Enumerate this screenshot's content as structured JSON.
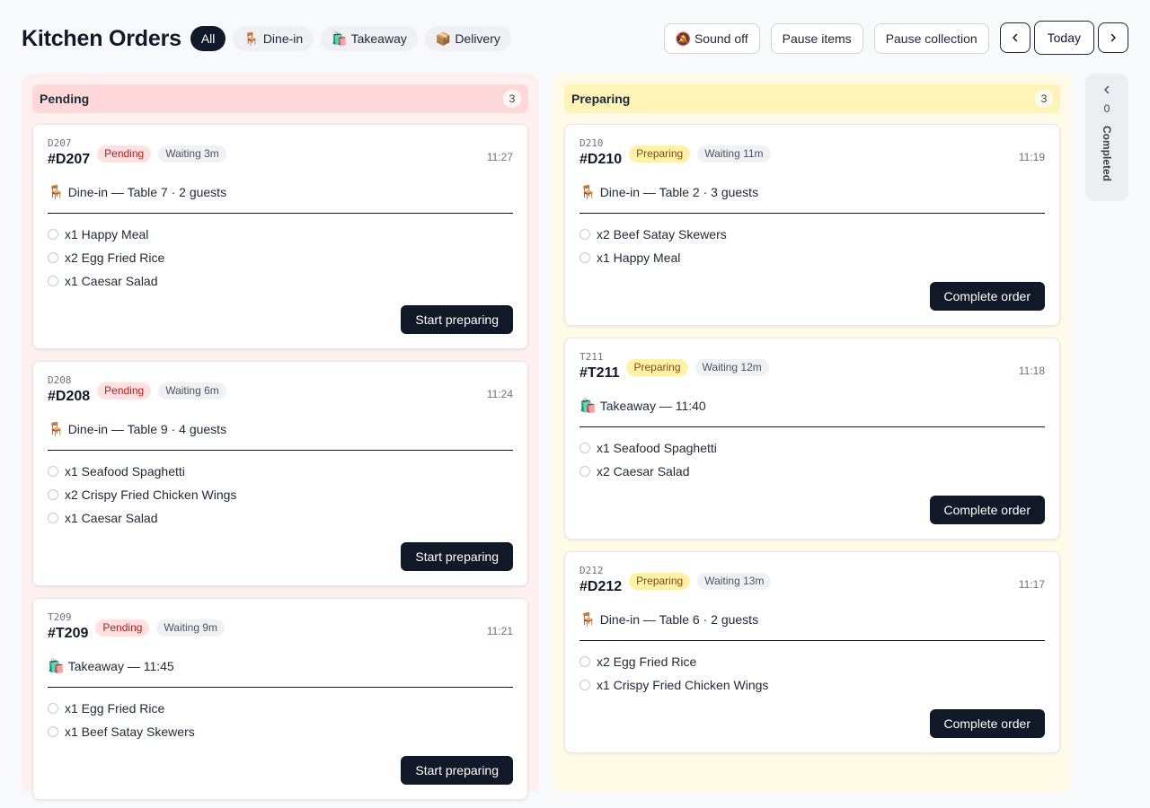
{
  "header": {
    "title": "Kitchen Orders",
    "filters": [
      {
        "label": "All",
        "emoji": ""
      },
      {
        "label": "Dine-in",
        "emoji": "🪑"
      },
      {
        "label": "Takeaway",
        "emoji": "🛍️"
      },
      {
        "label": "Delivery",
        "emoji": "📦"
      }
    ],
    "sound_label": "Sound off",
    "sound_emoji": "🔕",
    "pause_items_label": "Pause items",
    "pause_collection_label": "Pause collection",
    "today_label": "Today"
  },
  "columns": {
    "pending": {
      "title": "Pending",
      "count": "3",
      "orders": [
        {
          "small_id": "D207",
          "id": "#D207",
          "status": "Pending",
          "waiting": "Waiting 3m",
          "time": "11:27",
          "emoji": "🪑",
          "service": "Dine-in — Table 7 · 2 guests",
          "items": [
            "x1 Happy Meal",
            "x2 Egg Fried Rice",
            "x1 Caesar Salad"
          ],
          "action": "Start preparing"
        },
        {
          "small_id": "D208",
          "id": "#D208",
          "status": "Pending",
          "waiting": "Waiting 6m",
          "time": "11:24",
          "emoji": "🪑",
          "service": "Dine-in — Table 9 · 4 guests",
          "items": [
            "x1 Seafood Spaghetti",
            "x2 Crispy Fried Chicken Wings",
            "x1 Caesar Salad"
          ],
          "action": "Start preparing"
        },
        {
          "small_id": "T209",
          "id": "#T209",
          "status": "Pending",
          "waiting": "Waiting 9m",
          "time": "11:21",
          "emoji": "🛍️",
          "service": "Takeaway — 11:45",
          "items": [
            "x1 Egg Fried Rice",
            "x1 Beef Satay Skewers"
          ],
          "action": "Start preparing"
        }
      ]
    },
    "preparing": {
      "title": "Preparing",
      "count": "3",
      "orders": [
        {
          "small_id": "D210",
          "id": "#D210",
          "status": "Preparing",
          "waiting": "Waiting 11m",
          "time": "11:19",
          "emoji": "🪑",
          "service": "Dine-in — Table 2 · 3 guests",
          "items": [
            "x2 Beef Satay Skewers",
            "x1 Happy Meal"
          ],
          "action": "Complete order"
        },
        {
          "small_id": "T211",
          "id": "#T211",
          "status": "Preparing",
          "waiting": "Waiting 12m",
          "time": "11:18",
          "emoji": "🛍️",
          "service": "Takeaway — 11:40",
          "items": [
            "x1 Seafood Spaghetti",
            "x2 Caesar Salad"
          ],
          "action": "Complete order"
        },
        {
          "small_id": "D212",
          "id": "#D212",
          "status": "Preparing",
          "waiting": "Waiting 13m",
          "time": "11:17",
          "emoji": "🪑",
          "service": "Dine-in — Table 6 · 2 guests",
          "items": [
            "x2 Egg Fried Rice",
            "x1 Crispy Fried Chicken Wings"
          ],
          "action": "Complete order"
        }
      ]
    },
    "completed": {
      "title": "Completed",
      "count": "0"
    }
  },
  "colors": {
    "pending_bg": "#fff0f0",
    "preparing_bg": "#fffbe6",
    "primary": "#111827"
  }
}
